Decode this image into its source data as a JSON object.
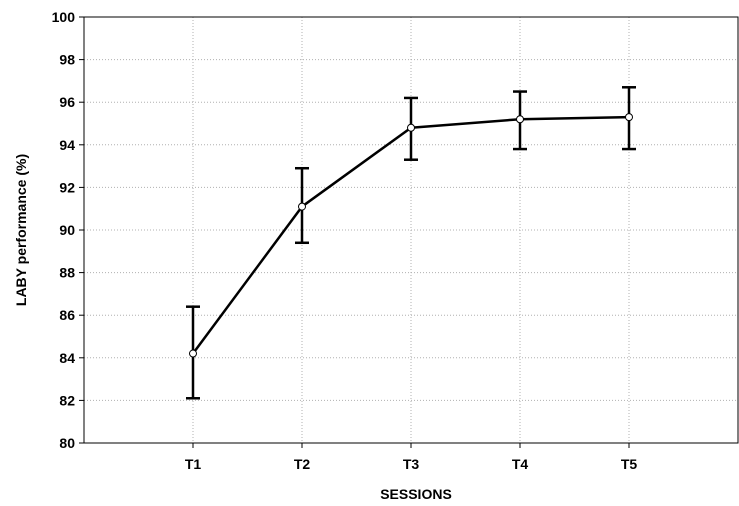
{
  "chart_data": {
    "type": "line",
    "title": "",
    "xlabel": "SESSIONS",
    "ylabel": "LABY performance (%)",
    "categories": [
      "T1",
      "T2",
      "T3",
      "T4",
      "T5"
    ],
    "series": [
      {
        "values": [
          84.2,
          91.1,
          94.8,
          95.2,
          95.3
        ],
        "error_low": [
          82.1,
          89.4,
          93.3,
          93.8,
          93.8
        ],
        "error_high": [
          86.4,
          92.9,
          96.2,
          96.5,
          96.7
        ]
      }
    ],
    "ylim": [
      80,
      100
    ],
    "yticks": [
      80,
      82,
      84,
      86,
      88,
      90,
      92,
      94,
      96,
      98,
      100
    ],
    "grid": true,
    "legend": "none",
    "colors": {
      "line": "#000000",
      "marker_fill": "#ffffff",
      "grid": "#b0b0b0"
    }
  }
}
